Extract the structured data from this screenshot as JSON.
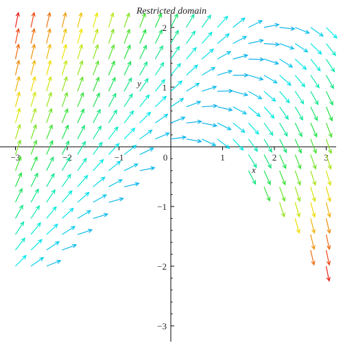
{
  "chart_data": {
    "type": "vector-field",
    "title": "Restricted domain",
    "xlabel": "x",
    "ylabel": "y",
    "xlim": [
      -3.2,
      3.15
    ],
    "ylim": [
      -3.2,
      2.2
    ],
    "x_ticks": [
      -3,
      -2,
      -1,
      0,
      1,
      2,
      3
    ],
    "x_tick_labels": [
      "−3",
      "−2",
      "−1",
      "0",
      "1",
      "2",
      "3"
    ],
    "y_ticks": [
      -3,
      -2,
      -1,
      1,
      2
    ],
    "y_tick_labels": [
      "−3",
      "−2",
      "−1",
      "1",
      "2"
    ],
    "field": "dx/dt = 1, dy/dt = y - x",
    "domain": "y >= x - 1 for x < 0; y >= 1 - x^2 restriction approximated from plot",
    "grid_x": [
      -3.0,
      -2.7,
      -2.4,
      -2.1,
      -1.8,
      -1.5,
      -1.2,
      -0.9,
      -0.6,
      -0.3,
      0.0,
      0.3,
      0.6,
      0.9,
      1.2,
      1.5,
      1.8,
      2.1,
      2.4,
      2.7,
      3.0
    ],
    "grid_y": [
      2.0,
      1.73,
      1.47,
      1.2,
      0.93,
      0.67,
      0.4,
      0.13,
      -0.13,
      -0.4,
      -0.67,
      -0.93,
      -1.2,
      -1.47,
      -1.73,
      -2.0
    ],
    "grid": false,
    "color_scheme": "speed-mapped: blue (slow) to cyan, green, yellow, red (fast)"
  }
}
